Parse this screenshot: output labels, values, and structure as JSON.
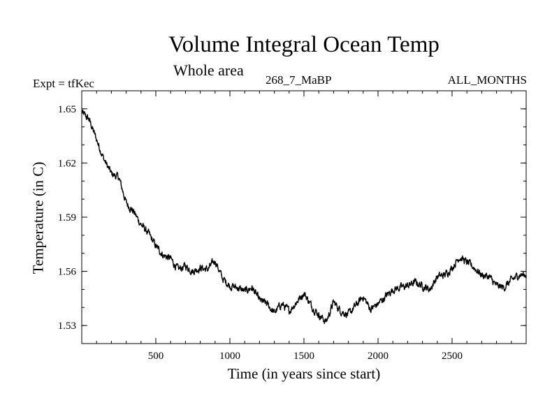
{
  "chart_data": {
    "type": "line",
    "title": "Volume Integral Ocean Temp",
    "subtitle": "Whole area",
    "experiment_label": "Expt = tfKec",
    "period_label": "268_7_MaBP",
    "months_label": "ALL_MONTHS",
    "xlabel": "Time (in years since start)",
    "ylabel": "Temperature (in C)",
    "xlim": [
      0,
      3000
    ],
    "ylim": [
      1.52,
      1.66
    ],
    "xticks": [
      500,
      1000,
      1500,
      2000,
      2500
    ],
    "yticks": [
      1.53,
      1.56,
      1.59,
      1.62,
      1.65
    ],
    "ytick_labels": [
      "1.53",
      "1.56",
      "1.59",
      "1.62",
      "1.65"
    ],
    "grid": false,
    "line_color": "#000000",
    "series": [
      {
        "x": [
          0,
          50,
          100,
          150,
          200,
          250,
          300,
          350,
          400,
          450,
          500,
          550,
          600,
          650,
          700,
          750,
          800,
          850,
          900,
          950,
          1000,
          1050,
          1100,
          1150,
          1200,
          1250,
          1300,
          1350,
          1400,
          1450,
          1500,
          1550,
          1600,
          1650,
          1700,
          1750,
          1800,
          1850,
          1900,
          1950,
          2000,
          2050,
          2100,
          2150,
          2200,
          2250,
          2300,
          2350,
          2400,
          2450,
          2500,
          2550,
          2600,
          2650,
          2700,
          2750,
          2800,
          2850,
          2900,
          2950,
          3000
        ],
        "y": [
          1.648,
          1.644,
          1.633,
          1.622,
          1.614,
          1.612,
          1.598,
          1.593,
          1.586,
          1.581,
          1.574,
          1.569,
          1.567,
          1.561,
          1.563,
          1.56,
          1.562,
          1.561,
          1.566,
          1.556,
          1.552,
          1.551,
          1.549,
          1.551,
          1.544,
          1.542,
          1.537,
          1.542,
          1.538,
          1.543,
          1.548,
          1.541,
          1.536,
          1.532,
          1.543,
          1.538,
          1.536,
          1.541,
          1.546,
          1.539,
          1.542,
          1.546,
          1.55,
          1.551,
          1.552,
          1.554,
          1.552,
          1.55,
          1.557,
          1.558,
          1.562,
          1.568,
          1.565,
          1.562,
          1.558,
          1.557,
          1.552,
          1.551,
          1.555,
          1.558,
          1.558
        ]
      }
    ]
  }
}
